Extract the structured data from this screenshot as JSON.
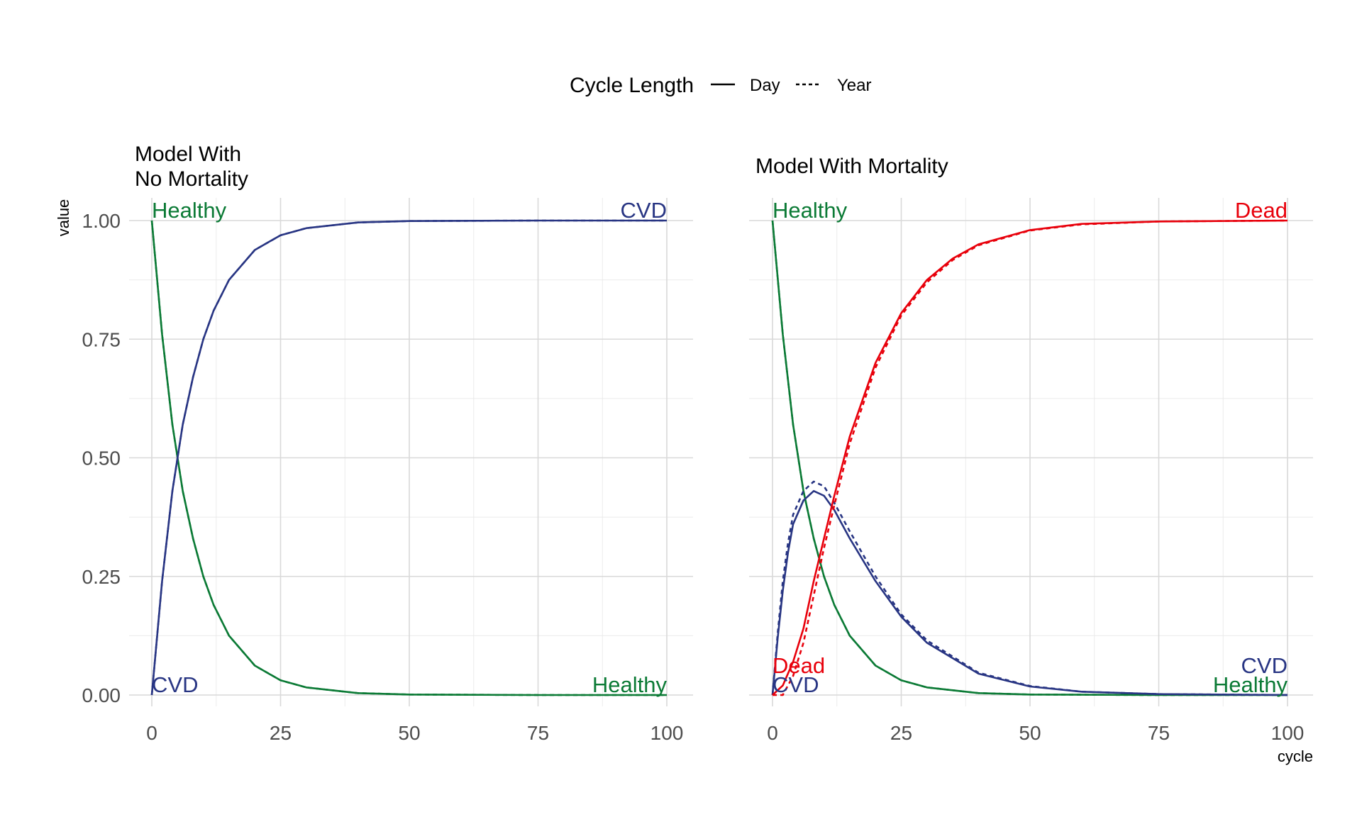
{
  "colors": {
    "Healthy": "#0b7a35",
    "CVD": "#283583",
    "Dead": "#e8000b"
  },
  "legend": {
    "title": "Cycle Length",
    "items": [
      {
        "label": "Day",
        "linetype": "solid"
      },
      {
        "label": "Year",
        "linetype": "dashed"
      }
    ]
  },
  "axes": {
    "ylabel": "value",
    "xlabel": "cycle"
  },
  "chart_data": [
    {
      "type": "line",
      "title_lines": [
        "Model With",
        "No Mortality"
      ],
      "xlim": [
        0,
        100
      ],
      "ylim": [
        0,
        1
      ],
      "x_ticks": [
        0,
        25,
        50,
        75,
        100
      ],
      "y_ticks": [
        "0.00",
        "0.25",
        "0.50",
        "0.75",
        "1.00"
      ],
      "grid": true,
      "series": [
        {
          "name": "Healthy",
          "cycle_length": "Day",
          "x": [
            0,
            2,
            4,
            6,
            8,
            10,
            12,
            15,
            20,
            25,
            30,
            40,
            50,
            75,
            100
          ],
          "y": [
            1.0,
            0.76,
            0.57,
            0.43,
            0.33,
            0.25,
            0.19,
            0.125,
            0.062,
            0.031,
            0.016,
            0.004,
            0.001,
            0.0,
            0.0
          ]
        },
        {
          "name": "Healthy",
          "cycle_length": "Year",
          "x": [
            0,
            2,
            4,
            6,
            8,
            10,
            12,
            15,
            20,
            25,
            30,
            40,
            50,
            75,
            100
          ],
          "y": [
            1.0,
            0.76,
            0.57,
            0.43,
            0.33,
            0.25,
            0.19,
            0.125,
            0.062,
            0.031,
            0.016,
            0.004,
            0.001,
            0.0,
            0.0
          ]
        },
        {
          "name": "CVD",
          "cycle_length": "Day",
          "x": [
            0,
            2,
            4,
            6,
            8,
            10,
            12,
            15,
            20,
            25,
            30,
            40,
            50,
            75,
            100
          ],
          "y": [
            0.0,
            0.24,
            0.43,
            0.57,
            0.67,
            0.75,
            0.81,
            0.875,
            0.938,
            0.969,
            0.984,
            0.996,
            0.999,
            1.0,
            1.0
          ]
        },
        {
          "name": "CVD",
          "cycle_length": "Year",
          "x": [
            0,
            2,
            4,
            6,
            8,
            10,
            12,
            15,
            20,
            25,
            30,
            40,
            50,
            75,
            100
          ],
          "y": [
            0.0,
            0.24,
            0.43,
            0.57,
            0.67,
            0.75,
            0.81,
            0.875,
            0.938,
            0.969,
            0.984,
            0.996,
            0.999,
            1.0,
            1.0
          ]
        }
      ],
      "end_labels": [
        {
          "name": "Healthy",
          "text": "Healthy",
          "at": "start",
          "value": 1.0
        },
        {
          "name": "CVD",
          "text": "CVD",
          "at": "start",
          "value": 0.0
        },
        {
          "name": "CVD",
          "text": "CVD",
          "at": "end",
          "value": 1.0
        },
        {
          "name": "Healthy",
          "text": "Healthy",
          "at": "end",
          "value": 0.0
        }
      ]
    },
    {
      "type": "line",
      "title_lines": [
        "Model With Mortality"
      ],
      "xlim": [
        0,
        100
      ],
      "ylim": [
        0,
        1
      ],
      "x_ticks": [
        0,
        25,
        50,
        75,
        100
      ],
      "y_ticks": [
        "0.00",
        "0.25",
        "0.50",
        "0.75",
        "1.00"
      ],
      "grid": true,
      "series": [
        {
          "name": "Healthy",
          "cycle_length": "Day",
          "x": [
            0,
            2,
            4,
            6,
            8,
            10,
            12,
            15,
            20,
            25,
            30,
            40,
            50,
            75,
            100
          ],
          "y": [
            1.0,
            0.76,
            0.57,
            0.43,
            0.33,
            0.25,
            0.19,
            0.125,
            0.062,
            0.031,
            0.016,
            0.004,
            0.001,
            0.0,
            0.0
          ]
        },
        {
          "name": "Healthy",
          "cycle_length": "Year",
          "x": [
            0,
            2,
            4,
            6,
            8,
            10,
            12,
            15,
            20,
            25,
            30,
            40,
            50,
            75,
            100
          ],
          "y": [
            1.0,
            0.76,
            0.57,
            0.43,
            0.33,
            0.25,
            0.19,
            0.125,
            0.062,
            0.031,
            0.016,
            0.004,
            0.001,
            0.0,
            0.0
          ]
        },
        {
          "name": "CVD",
          "cycle_length": "Day",
          "x": [
            0,
            1,
            2,
            3,
            4,
            6,
            8,
            10,
            12,
            15,
            20,
            25,
            30,
            40,
            50,
            60,
            75,
            100
          ],
          "y": [
            0.0,
            0.12,
            0.22,
            0.3,
            0.36,
            0.41,
            0.43,
            0.42,
            0.39,
            0.33,
            0.24,
            0.165,
            0.11,
            0.045,
            0.018,
            0.007,
            0.002,
            0.0
          ]
        },
        {
          "name": "CVD",
          "cycle_length": "Year",
          "x": [
            0,
            1,
            2,
            3,
            4,
            6,
            8,
            10,
            12,
            15,
            20,
            25,
            30,
            40,
            50,
            60,
            75,
            100
          ],
          "y": [
            0.0,
            0.13,
            0.24,
            0.32,
            0.38,
            0.43,
            0.45,
            0.44,
            0.405,
            0.345,
            0.25,
            0.17,
            0.115,
            0.047,
            0.019,
            0.007,
            0.002,
            0.0
          ]
        },
        {
          "name": "Dead",
          "cycle_length": "Day",
          "x": [
            0,
            2,
            4,
            6,
            8,
            10,
            12,
            15,
            20,
            25,
            30,
            35,
            40,
            50,
            60,
            75,
            100
          ],
          "y": [
            0.0,
            0.02,
            0.07,
            0.14,
            0.24,
            0.33,
            0.42,
            0.545,
            0.7,
            0.805,
            0.875,
            0.92,
            0.95,
            0.98,
            0.993,
            0.998,
            1.0
          ]
        },
        {
          "name": "Dead",
          "cycle_length": "Year",
          "x": [
            0,
            2,
            4,
            6,
            8,
            10,
            12,
            15,
            20,
            25,
            30,
            35,
            40,
            50,
            60,
            75,
            100
          ],
          "y": [
            0.0,
            0.0,
            0.04,
            0.11,
            0.21,
            0.31,
            0.4,
            0.53,
            0.69,
            0.8,
            0.87,
            0.917,
            0.948,
            0.979,
            0.992,
            0.998,
            1.0
          ]
        }
      ],
      "end_labels": [
        {
          "name": "Healthy",
          "text": "Healthy",
          "at": "start",
          "value": 1.0
        },
        {
          "name": "Dead",
          "text": "Dead",
          "at": "start",
          "value": 0.04
        },
        {
          "name": "CVD",
          "text": "CVD",
          "at": "start",
          "value": 0.0
        },
        {
          "name": "Dead",
          "text": "Dead",
          "at": "end",
          "value": 1.0
        },
        {
          "name": "CVD",
          "text": "CVD",
          "at": "end",
          "value": 0.04
        },
        {
          "name": "Healthy",
          "text": "Healthy",
          "at": "end",
          "value": 0.0
        }
      ]
    }
  ]
}
